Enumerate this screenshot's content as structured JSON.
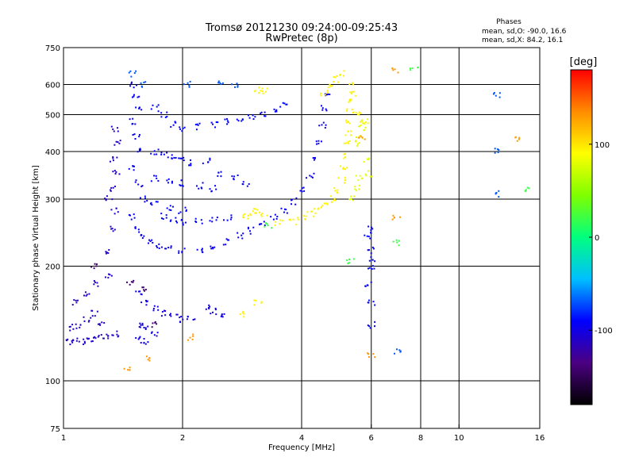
{
  "chart_data": {
    "type": "scatter",
    "title_line1": "Tromsø 20121230 09:24:00-09:25:43",
    "title_line2": "RwPretec (8p)",
    "phases": {
      "heading": "Phases",
      "line_o": "mean, sd,O: -90.0, 16.6",
      "line_x": "mean, sd,X:  84.2, 16.1"
    },
    "xlabel": "Frequency [MHz]",
    "ylabel": "Stationary phase Virtual Height [km]",
    "x_scale": "log",
    "y_scale": "log",
    "xlim": [
      1,
      16
    ],
    "ylim": [
      75,
      750
    ],
    "x_ticks": [
      1,
      2,
      4,
      6,
      8,
      10,
      16
    ],
    "x_tick_labels": [
      "1",
      "2",
      "4",
      "6",
      "8",
      "10",
      "16"
    ],
    "x_gridlines": [
      2,
      4,
      6,
      8,
      10
    ],
    "y_ticks": [
      75,
      100,
      200,
      300,
      400,
      500,
      600,
      750
    ],
    "y_tick_labels": [
      "75",
      "100",
      "200",
      "300",
      "400",
      "500",
      "600",
      "750"
    ],
    "y_gridlines": [
      100,
      200,
      300,
      400,
      500,
      600
    ],
    "colorbar": {
      "label": "[deg]",
      "range": [
        -180,
        180
      ],
      "tick_values": [
        100,
        0,
        -100
      ],
      "tick_labels": [
        "100",
        "0",
        "-100"
      ],
      "stops": [
        "#000000",
        "#4b0082",
        "#0000ff",
        "#00bfff",
        "#00ff7f",
        "#7fff00",
        "#ffff00",
        "#ff8c00",
        "#ff0000"
      ]
    },
    "series": [
      {
        "phase": -110,
        "points": [
          [
            1.02,
            128
          ],
          [
            1.05,
            126
          ],
          [
            1.1,
            127
          ],
          [
            1.15,
            128
          ],
          [
            1.2,
            129
          ],
          [
            1.25,
            130
          ],
          [
            1.3,
            131
          ],
          [
            1.35,
            133
          ],
          [
            1.05,
            138
          ],
          [
            1.1,
            140
          ],
          [
            1.15,
            145
          ],
          [
            1.2,
            150
          ],
          [
            1.25,
            140
          ],
          [
            1.08,
            160
          ],
          [
            1.15,
            170
          ],
          [
            1.22,
            180
          ],
          [
            1.3,
            190
          ],
          [
            1.28,
            220
          ],
          [
            1.32,
            250
          ],
          [
            1.35,
            280
          ],
          [
            1.3,
            300
          ],
          [
            1.33,
            320
          ],
          [
            1.36,
            350
          ],
          [
            1.34,
            380
          ],
          [
            1.37,
            420
          ],
          [
            1.35,
            460
          ]
        ]
      },
      {
        "phase": -95,
        "points": [
          [
            1.5,
            600
          ],
          [
            1.52,
            560
          ],
          [
            1.55,
            520
          ],
          [
            1.5,
            480
          ],
          [
            1.53,
            440
          ],
          [
            1.56,
            400
          ],
          [
            1.5,
            360
          ],
          [
            1.55,
            330
          ],
          [
            1.6,
            300
          ],
          [
            1.5,
            270
          ],
          [
            1.55,
            250
          ],
          [
            1.6,
            240
          ],
          [
            1.65,
            232
          ],
          [
            1.75,
            226
          ],
          [
            1.85,
            222
          ],
          [
            2.0,
            219
          ],
          [
            2.2,
            220
          ],
          [
            2.4,
            225
          ],
          [
            2.6,
            232
          ],
          [
            2.8,
            240
          ],
          [
            3.0,
            248
          ],
          [
            3.2,
            258
          ],
          [
            3.4,
            268
          ],
          [
            3.6,
            280
          ],
          [
            3.8,
            296
          ],
          [
            4.0,
            318
          ],
          [
            4.2,
            345
          ],
          [
            4.35,
            380
          ],
          [
            4.45,
            420
          ],
          [
            4.52,
            470
          ],
          [
            4.58,
            520
          ],
          [
            4.62,
            570
          ]
        ]
      },
      {
        "phase": -90,
        "points": [
          [
            1.7,
            520
          ],
          [
            1.8,
            500
          ],
          [
            1.9,
            470
          ],
          [
            2.0,
            460
          ],
          [
            2.2,
            465
          ],
          [
            2.4,
            470
          ],
          [
            2.6,
            480
          ],
          [
            2.8,
            490
          ],
          [
            3.0,
            495
          ],
          [
            3.2,
            500
          ],
          [
            3.4,
            510
          ],
          [
            3.6,
            530
          ],
          [
            1.7,
            400
          ],
          [
            1.8,
            390
          ],
          [
            1.9,
            385
          ],
          [
            2.0,
            380
          ],
          [
            2.1,
            375
          ],
          [
            2.3,
            378
          ],
          [
            2.5,
            350
          ],
          [
            2.7,
            340
          ],
          [
            2.9,
            330
          ],
          [
            1.7,
            340
          ],
          [
            1.85,
            335
          ],
          [
            2.0,
            330
          ],
          [
            2.2,
            325
          ],
          [
            2.4,
            320
          ],
          [
            1.7,
            290
          ],
          [
            1.85,
            285
          ],
          [
            2.0,
            280
          ],
          [
            1.8,
            270
          ],
          [
            1.9,
            265
          ],
          [
            2.0,
            260
          ],
          [
            2.2,
            262
          ],
          [
            2.4,
            265
          ],
          [
            2.6,
            268
          ]
        ]
      },
      {
        "phase": -100,
        "points": [
          [
            1.55,
            170
          ],
          [
            1.6,
            160
          ],
          [
            1.7,
            155
          ],
          [
            1.8,
            150
          ],
          [
            1.9,
            148
          ],
          [
            2.0,
            145
          ],
          [
            1.55,
            140
          ],
          [
            1.6,
            138
          ],
          [
            1.7,
            132
          ],
          [
            1.55,
            128
          ],
          [
            1.6,
            127
          ],
          [
            2.3,
            155
          ],
          [
            2.4,
            152
          ],
          [
            2.1,
            146
          ],
          [
            2.5,
            150
          ]
        ]
      },
      {
        "phase": 95,
        "points": [
          [
            2.9,
            270
          ],
          [
            3.0,
            275
          ],
          [
            3.1,
            280
          ],
          [
            3.2,
            272
          ],
          [
            3.5,
            260
          ],
          [
            3.8,
            262
          ],
          [
            4.0,
            268
          ],
          [
            4.2,
            274
          ],
          [
            4.4,
            280
          ],
          [
            4.6,
            290
          ],
          [
            4.8,
            300
          ],
          [
            4.95,
            315
          ],
          [
            5.05,
            335
          ],
          [
            5.12,
            360
          ],
          [
            5.18,
            390
          ],
          [
            5.22,
            420
          ],
          [
            5.25,
            450
          ],
          [
            5.28,
            480
          ],
          [
            5.3,
            510
          ],
          [
            5.32,
            540
          ],
          [
            5.35,
            570
          ],
          [
            5.38,
            600
          ],
          [
            4.55,
            570
          ],
          [
            4.7,
            590
          ],
          [
            4.9,
            620
          ],
          [
            5.1,
            640
          ],
          [
            3.1,
            580
          ],
          [
            3.2,
            575
          ],
          [
            5.6,
            500
          ],
          [
            5.7,
            470
          ],
          [
            3.1,
            160
          ],
          [
            2.8,
            150
          ]
        ]
      },
      {
        "phase": 80,
        "points": [
          [
            5.5,
            420
          ],
          [
            5.6,
            440
          ],
          [
            5.7,
            460
          ],
          [
            5.8,
            480
          ],
          [
            5.85,
            380
          ],
          [
            5.9,
            350
          ],
          [
            5.4,
            300
          ],
          [
            5.5,
            320
          ],
          [
            5.6,
            340
          ]
        ]
      },
      {
        "phase": -90,
        "points": [
          [
            5.9,
            240
          ],
          [
            5.95,
            220
          ],
          [
            6.0,
            200
          ],
          [
            5.9,
            180
          ],
          [
            6.0,
            160
          ],
          [
            6.0,
            140
          ],
          [
            6.05,
            210
          ],
          [
            5.95,
            250
          ]
        ]
      },
      {
        "phase": -70,
        "points": [
          [
            1.5,
            640
          ],
          [
            1.6,
            600
          ],
          [
            2.05,
            600
          ],
          [
            2.5,
            610
          ],
          [
            2.7,
            600
          ],
          [
            12.5,
            560
          ],
          [
            12.5,
            400
          ],
          [
            12.5,
            310
          ],
          [
            7.0,
            120
          ]
        ]
      },
      {
        "phase": 130,
        "points": [
          [
            6.9,
            650
          ],
          [
            14.2,
            430
          ],
          [
            1.65,
            115
          ],
          [
            1.45,
            108
          ],
          [
            2.1,
            130
          ],
          [
            5.7,
            435
          ],
          [
            6.95,
            268
          ],
          [
            6.0,
            116
          ]
        ]
      },
      {
        "phase": 20,
        "points": [
          [
            7.7,
            660
          ],
          [
            15.0,
            320
          ],
          [
            6.9,
            230
          ],
          [
            5.3,
            205
          ],
          [
            3.3,
            255
          ]
        ]
      },
      {
        "phase": -140,
        "points": [
          [
            1.48,
            180
          ],
          [
            1.58,
            175
          ],
          [
            1.7,
            140
          ],
          [
            1.2,
            200
          ]
        ]
      }
    ]
  }
}
